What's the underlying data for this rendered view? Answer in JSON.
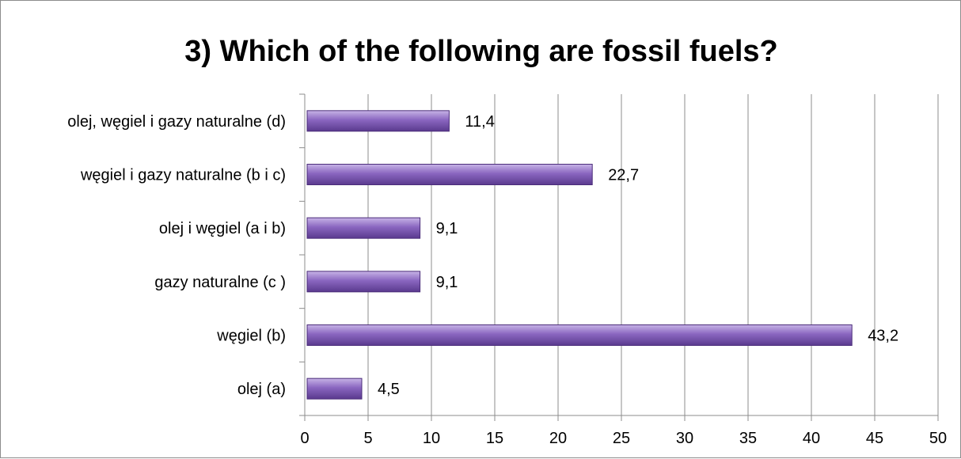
{
  "chart_data": {
    "type": "bar",
    "orientation": "horizontal",
    "title": "3) Which of the following are fossil fuels?",
    "categories": [
      "olej, węgiel i gazy naturalne (d)",
      "węgiel i gazy naturalne (b i c)",
      "olej i węgiel (a i b)",
      "gazy naturalne (c )",
      "węgiel (b)",
      "olej (a)"
    ],
    "values": [
      11.4,
      22.7,
      9.1,
      9.1,
      43.2,
      4.5
    ],
    "data_labels": [
      "11,4",
      "22,7",
      "9,1",
      "9,1",
      "43,2",
      "4,5"
    ],
    "xlim": [
      0,
      50
    ],
    "xticks": [
      0,
      5,
      10,
      15,
      20,
      25,
      30,
      35,
      40,
      45,
      50
    ],
    "xtick_labels": [
      "0",
      "5",
      "10",
      "15",
      "20",
      "25",
      "30",
      "35",
      "40",
      "45",
      "50"
    ],
    "xlabel": "",
    "ylabel": "",
    "grid": "vertical",
    "legend": "none",
    "colors": {
      "bar_top": "#c7b3e6",
      "bar_mid": "#8a66c0",
      "bar_bottom": "#5a3a8e",
      "bar_edge": "#4b2d7a",
      "gridline": "#8c8c8c",
      "axis": "#8c8c8c",
      "frame": "#8c8c8c"
    }
  }
}
